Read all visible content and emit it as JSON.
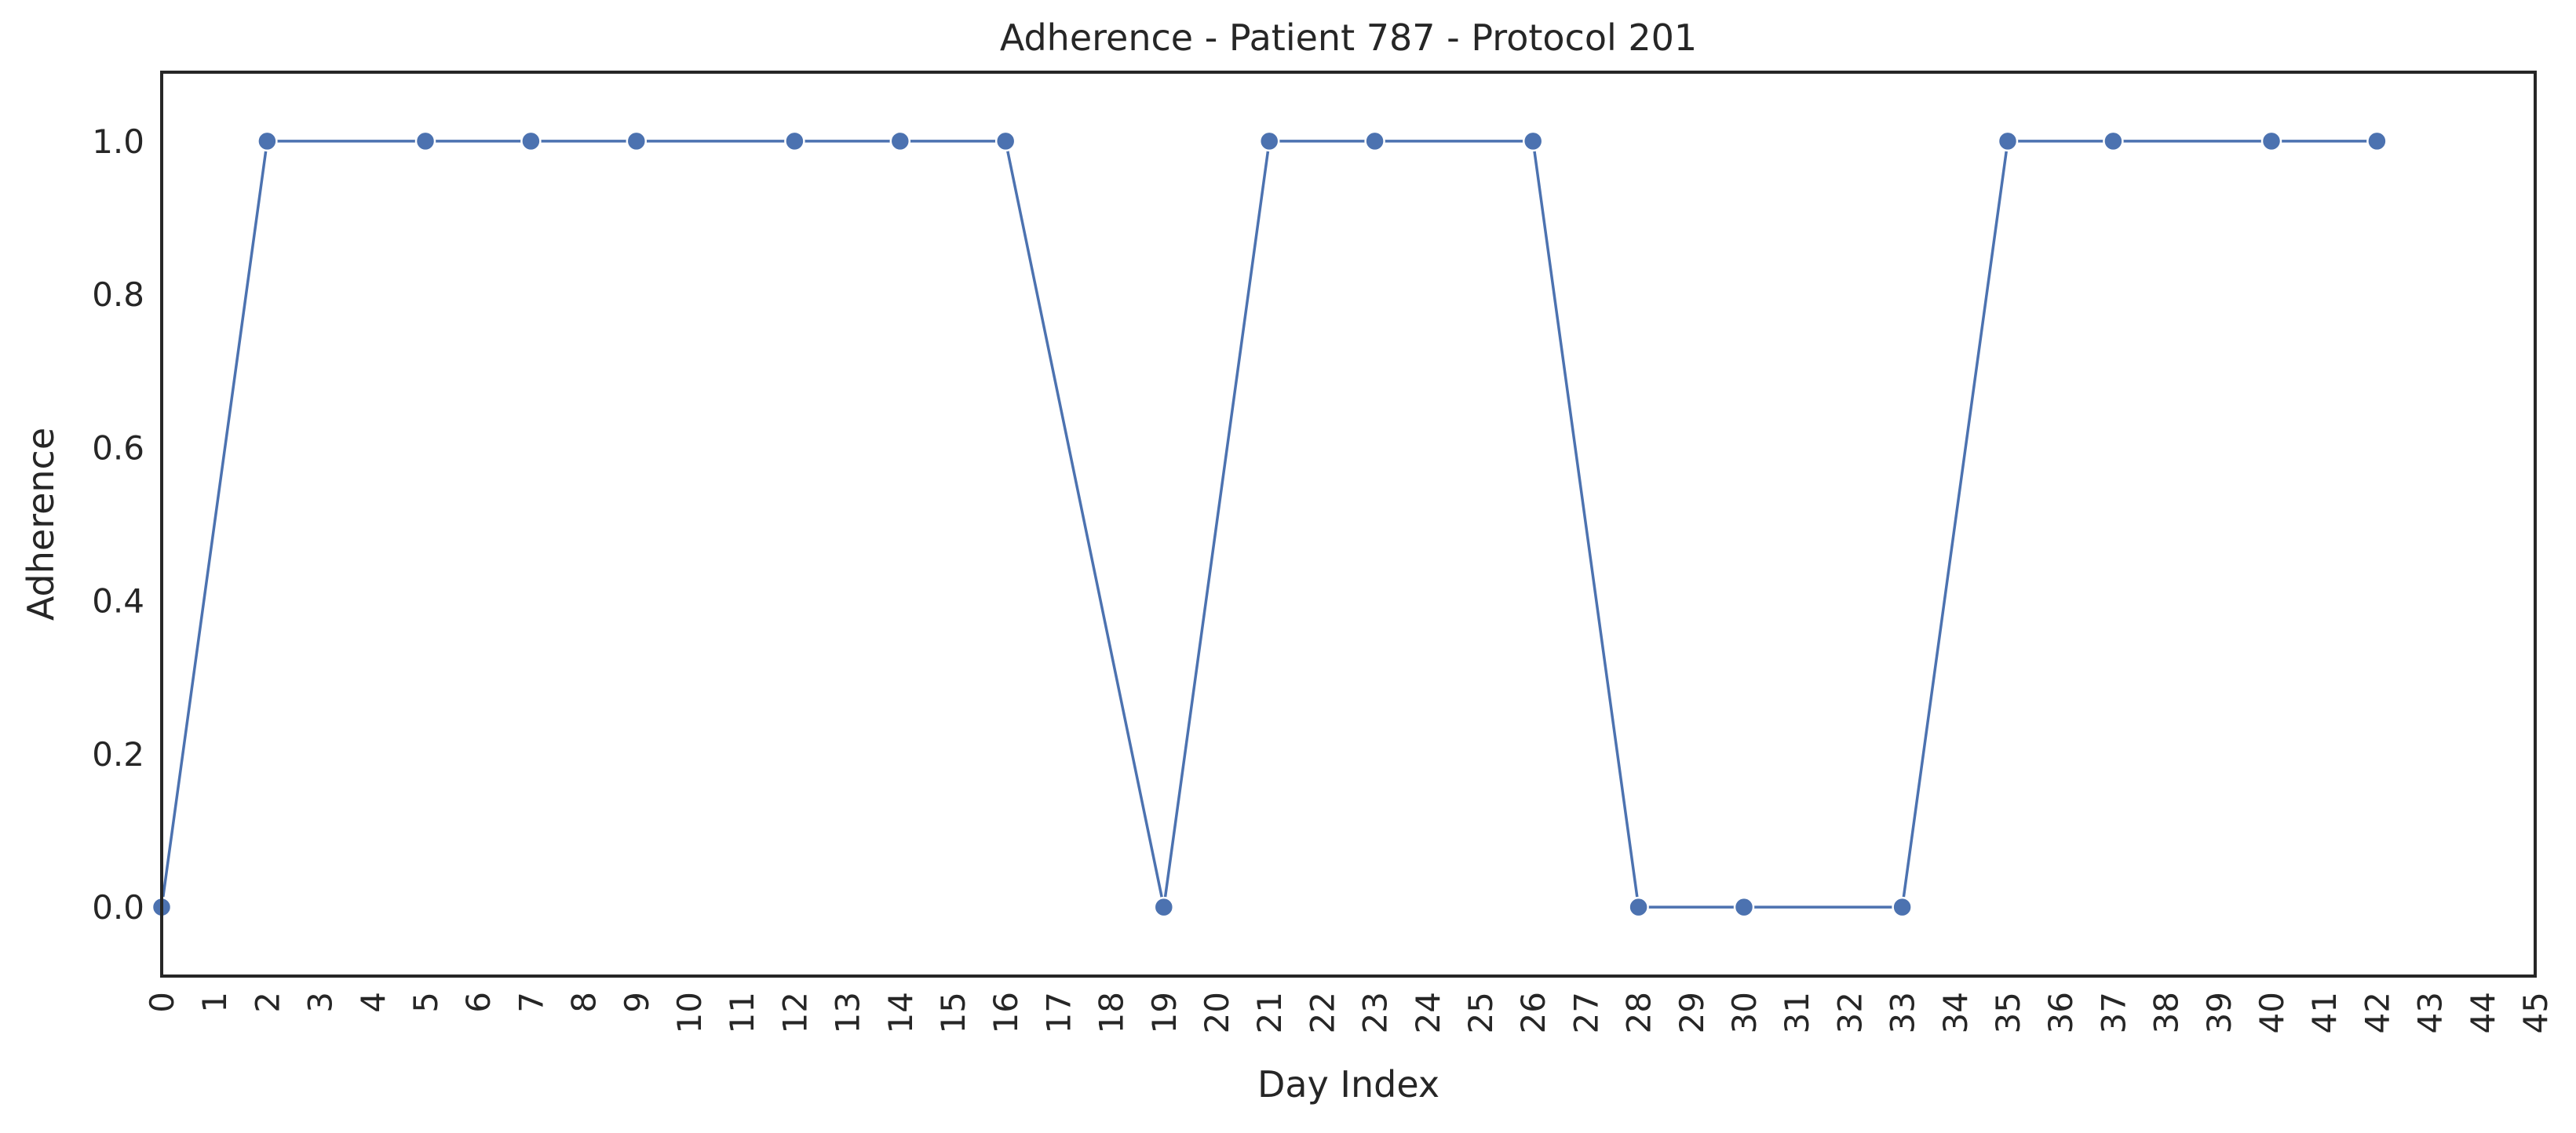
{
  "chart_data": {
    "type": "line",
    "title": "Adherence - Patient 787 - Protocol 201",
    "xlabel": "Day Index",
    "ylabel": "Adherence",
    "xlim": [
      0,
      45
    ],
    "ylim": [
      -0.09,
      1.09
    ],
    "x_ticks": [
      0,
      1,
      2,
      3,
      4,
      5,
      6,
      7,
      8,
      9,
      10,
      11,
      12,
      13,
      14,
      15,
      16,
      17,
      18,
      19,
      20,
      21,
      22,
      23,
      24,
      25,
      26,
      27,
      28,
      29,
      30,
      31,
      32,
      33,
      34,
      35,
      36,
      37,
      38,
      39,
      40,
      41,
      42,
      43,
      44,
      45
    ],
    "y_ticks": [
      0.0,
      0.2,
      0.4,
      0.6,
      0.8,
      1.0
    ],
    "y_tick_labels": [
      "0.0",
      "0.2",
      "0.4",
      "0.6",
      "0.8",
      "1.0"
    ],
    "grid": false,
    "legend": "none",
    "series": [
      {
        "color": "#4c72b0",
        "marker": "circle",
        "x": [
          0,
          2,
          5,
          7,
          9,
          12,
          14,
          16,
          19,
          21,
          23,
          26,
          28,
          30,
          33,
          35,
          37,
          40,
          42
        ],
        "y": [
          0,
          1,
          1,
          1,
          1,
          1,
          1,
          1,
          0,
          1,
          1,
          1,
          0,
          0,
          0,
          1,
          1,
          1,
          1
        ]
      }
    ]
  }
}
